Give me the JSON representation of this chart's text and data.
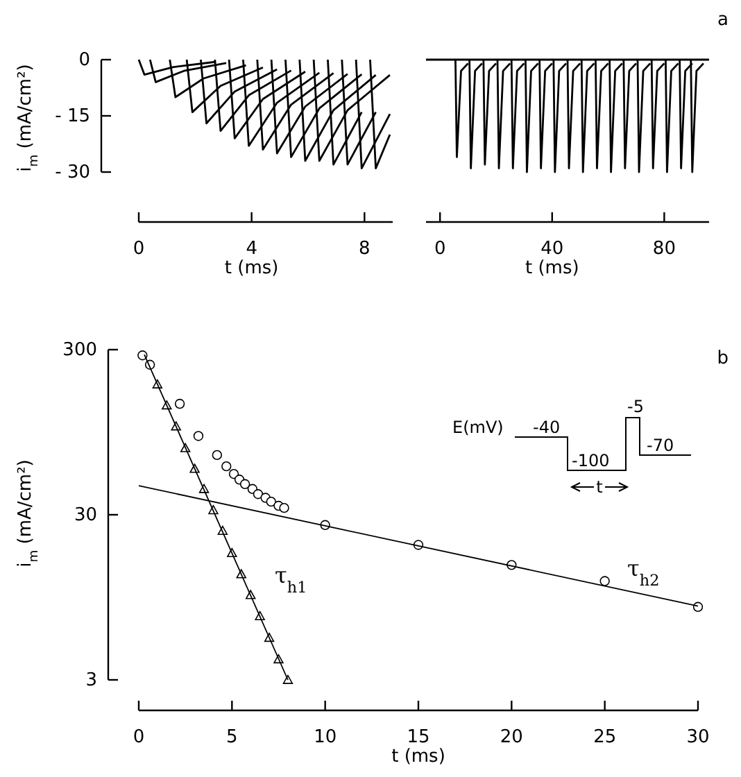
{
  "chart_data": [
    {
      "type": "line",
      "ylabel": "i$_{m}$ (mA/cm²)",
      "xlabel": "t (ms)",
      "xlim": [
        0,
        9
      ],
      "xticks": [
        0,
        4,
        8
      ],
      "ylim": [
        -30,
        0
      ],
      "yticks": [
        0,
        {
          "value": -15,
          "label": "- 15"
        },
        {
          "value": -30,
          "label": "- 30"
        }
      ],
      "marker": "none",
      "line_style": "solid",
      "series": [
        {
          "color": "#000000",
          "x": [
            0,
            0.2,
            1.2,
            2.7
          ],
          "values": [
            0,
            -4,
            -2,
            -0.6
          ]
        },
        {
          "color": "#000000",
          "x": [
            0.4,
            0.6,
            1.6,
            3.1
          ],
          "values": [
            0,
            -6,
            -3,
            -0.9
          ]
        },
        {
          "color": "#000000",
          "x": [
            1.1,
            1.3,
            2.3,
            3.8
          ],
          "values": [
            0,
            -10,
            -5,
            -1.5
          ]
        },
        {
          "color": "#000000",
          "x": [
            1.7,
            1.9,
            2.9,
            4.4
          ],
          "values": [
            0,
            -14,
            -7,
            -2.1
          ]
        },
        {
          "color": "#000000",
          "x": [
            2.2,
            2.4,
            3.4,
            4.9
          ],
          "values": [
            0,
            -17,
            -8.5,
            -2.6
          ]
        },
        {
          "color": "#000000",
          "x": [
            2.7,
            2.9,
            3.9,
            5.4
          ],
          "values": [
            0,
            -19,
            -9.5,
            -2.9
          ]
        },
        {
          "color": "#000000",
          "x": [
            3.2,
            3.4,
            4.4,
            5.9
          ],
          "values": [
            0,
            -21,
            -10.5,
            -3.2
          ]
        },
        {
          "color": "#000000",
          "x": [
            3.7,
            3.9,
            4.9,
            6.4
          ],
          "values": [
            0,
            -23,
            -11.5,
            -3.5
          ]
        },
        {
          "color": "#000000",
          "x": [
            4.2,
            4.4,
            5.4,
            6.9
          ],
          "values": [
            0,
            -24,
            -12,
            -3.6
          ]
        },
        {
          "color": "#000000",
          "x": [
            4.7,
            4.9,
            5.9,
            7.4
          ],
          "values": [
            0,
            -25,
            -12.5,
            -3.8
          ]
        },
        {
          "color": "#000000",
          "x": [
            5.2,
            5.4,
            6.4,
            7.9
          ],
          "values": [
            0,
            -26,
            -13,
            -3.9
          ]
        },
        {
          "color": "#000000",
          "x": [
            5.7,
            5.9,
            6.9,
            8.4
          ],
          "values": [
            0,
            -27,
            -13.5,
            -4.1
          ]
        },
        {
          "color": "#000000",
          "x": [
            6.2,
            6.4,
            7.4,
            8.9
          ],
          "values": [
            0,
            -27,
            -13.5,
            -4.1
          ]
        },
        {
          "color": "#000000",
          "x": [
            6.7,
            6.9,
            7.9
          ],
          "values": [
            0,
            -28,
            -14
          ]
        },
        {
          "color": "#000000",
          "x": [
            7.2,
            7.4,
            8.4
          ],
          "values": [
            0,
            -28,
            -14
          ]
        },
        {
          "color": "#000000",
          "x": [
            7.7,
            7.9,
            8.9
          ],
          "values": [
            0,
            -29,
            -14.5
          ]
        },
        {
          "color": "#000000",
          "x": [
            8.2,
            8.4,
            8.9
          ],
          "values": [
            0,
            -29,
            -20
          ]
        }
      ]
    },
    {
      "type": "line",
      "title": "a",
      "xlabel": "t (ms)",
      "xlim": [
        -5,
        96
      ],
      "xticks": [
        0,
        40,
        80
      ],
      "ylim": [
        -30,
        0
      ],
      "tick_labels": "x",
      "marker": "none",
      "line_style": "solid",
      "series": [
        {
          "color": "#000000",
          "x": [
            -5,
            96
          ],
          "values": [
            0,
            0
          ]
        },
        {
          "color": "#000000",
          "x": [
            5.5,
            6,
            7.5,
            10
          ],
          "values": [
            0,
            -26,
            -3,
            -1
          ]
        },
        {
          "color": "#000000",
          "x": [
            10.5,
            11,
            12.5,
            15
          ],
          "values": [
            0,
            -29,
            -3,
            -1
          ]
        },
        {
          "color": "#000000",
          "x": [
            15.5,
            16,
            17.5,
            20
          ],
          "values": [
            0,
            -28,
            -3,
            -1
          ]
        },
        {
          "color": "#000000",
          "x": [
            20.5,
            21,
            22.5,
            25
          ],
          "values": [
            0,
            -29,
            -3,
            -1
          ]
        },
        {
          "color": "#000000",
          "x": [
            25.5,
            26,
            27.5,
            30
          ],
          "values": [
            0,
            -29,
            -3,
            -1
          ]
        },
        {
          "color": "#000000",
          "x": [
            30.5,
            31,
            32.5,
            35
          ],
          "values": [
            0,
            -30,
            -3,
            -1
          ]
        },
        {
          "color": "#000000",
          "x": [
            35.5,
            36,
            37.5,
            40
          ],
          "values": [
            0,
            -29,
            -3,
            -1
          ]
        },
        {
          "color": "#000000",
          "x": [
            40.5,
            41,
            42.5,
            45
          ],
          "values": [
            0,
            -30,
            -3,
            -1
          ]
        },
        {
          "color": "#000000",
          "x": [
            45.5,
            46,
            47.5,
            50
          ],
          "values": [
            0,
            -29,
            -3,
            -1
          ]
        },
        {
          "color": "#000000",
          "x": [
            50.5,
            51,
            52.5,
            55
          ],
          "values": [
            0,
            -30,
            -3,
            -1
          ]
        },
        {
          "color": "#000000",
          "x": [
            55.5,
            56,
            57.5,
            60
          ],
          "values": [
            0,
            -29,
            -3,
            -1
          ]
        },
        {
          "color": "#000000",
          "x": [
            60.5,
            61,
            62.5,
            65
          ],
          "values": [
            0,
            -30,
            -3,
            -1
          ]
        },
        {
          "color": "#000000",
          "x": [
            65.5,
            66,
            67.5,
            70
          ],
          "values": [
            0,
            -29,
            -3,
            -1
          ]
        },
        {
          "color": "#000000",
          "x": [
            70.5,
            71,
            72.5,
            75
          ],
          "values": [
            0,
            -30,
            -3,
            -1
          ]
        },
        {
          "color": "#000000",
          "x": [
            75.5,
            76,
            77.5,
            80
          ],
          "values": [
            0,
            -29,
            -3,
            -1
          ]
        },
        {
          "color": "#000000",
          "x": [
            80.5,
            81,
            82.5,
            85
          ],
          "values": [
            0,
            -30,
            -3,
            -1
          ]
        },
        {
          "color": "#000000",
          "x": [
            85.5,
            86,
            87.5,
            90
          ],
          "values": [
            0,
            -29,
            -3,
            -1
          ]
        },
        {
          "color": "#000000",
          "x": [
            89.5,
            90,
            91.5,
            94
          ],
          "values": [
            0,
            -30,
            -3,
            -1
          ]
        }
      ]
    },
    {
      "type": "scatter",
      "title": "b",
      "ylabel": "i$_{m}$ (mA/cm²)",
      "xlabel": "t (ms)",
      "xlim": [
        0,
        30
      ],
      "xticks": [
        0,
        5,
        10,
        15,
        20,
        25,
        30
      ],
      "ylim": [
        3,
        300
      ],
      "yticks": [
        300,
        30,
        3
      ],
      "log": "y",
      "series": [
        {
          "marker": "circle",
          "color": "#000000",
          "x": [
            0.2,
            0.6,
            2.2,
            3.2,
            4.2,
            4.7,
            5.1,
            5.4,
            5.7,
            6.1,
            6.4,
            6.8,
            7.1,
            7.5,
            7.8,
            10,
            15,
            20,
            25,
            30
          ],
          "values": [
            277,
            243,
            141,
            90,
            69,
            59,
            53,
            49,
            46,
            43,
            40,
            38,
            36,
            34,
            33,
            26,
            19.7,
            14.9,
            11.9,
            8.3
          ]
        },
        {
          "marker": "triangle",
          "color": "#000000",
          "x": [
            1,
            1.5,
            2,
            2.5,
            3,
            3.5,
            4,
            4.5,
            5,
            5.5,
            6,
            6.5,
            7,
            7.5,
            8
          ],
          "values": [
            185,
            138,
            103,
            76,
            57,
            43,
            32,
            24,
            17.6,
            13.1,
            9.8,
            7.3,
            5.4,
            4,
            3
          ]
        },
        {
          "type": "line",
          "marker": "none",
          "color": "#000000",
          "x": [
            0.3,
            8
          ],
          "values": [
            280,
            3
          ]
        },
        {
          "type": "line",
          "marker": "none",
          "color": "#000000",
          "x": [
            0,
            30
          ],
          "values": [
            45,
            8.4
          ]
        }
      ],
      "annotations": [
        "τ$_{h1}$",
        "τ$_{h2}$",
        "E(mV)",
        "-40",
        "-100",
        "-5",
        "-70",
        "t"
      ]
    }
  ]
}
